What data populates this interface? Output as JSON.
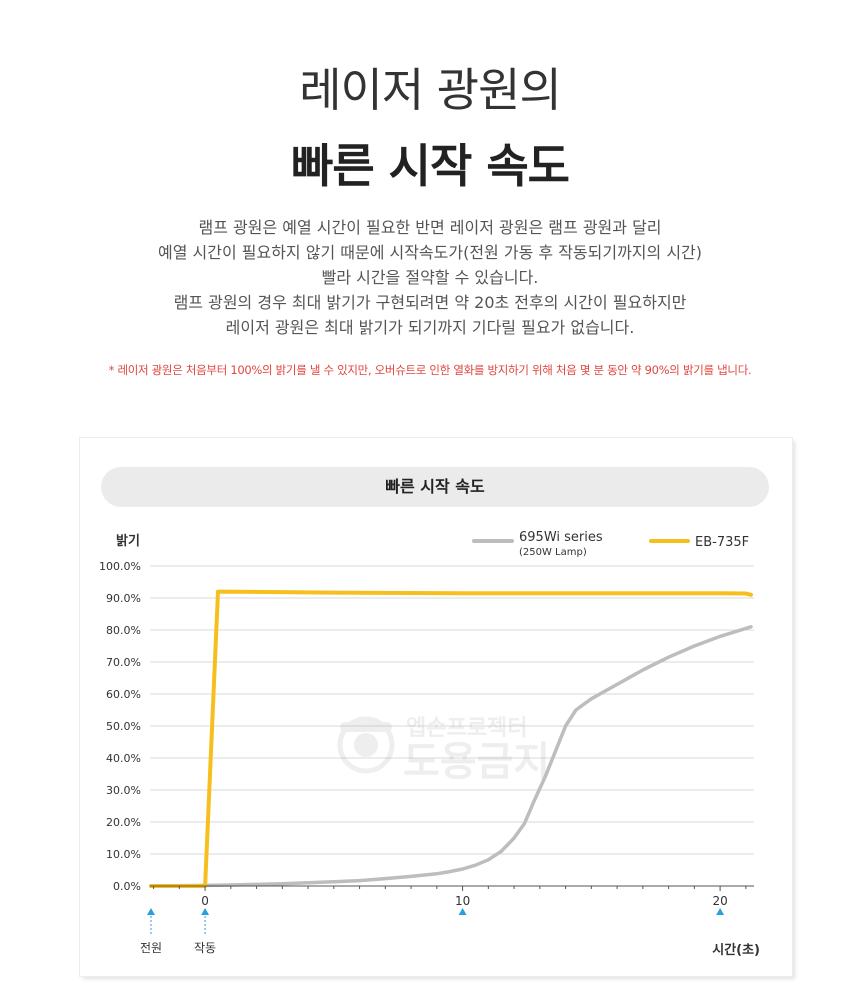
{
  "header": {
    "title_line1": "레이저 광원의",
    "title_line2": "빠른 시작 속도",
    "description": [
      "램프 광원은 예열 시간이 필요한 반면 레이저 광원은 램프 광원과 달리",
      "예열 시간이 필요하지 않기 때문에 시작속도가(전원 가동 후 작동되기까지의 시간)",
      "빨라 시간을 절약할 수 있습니다.",
      "램프 광원의 경우 최대 밝기가 구현되려면 약 20초 전후의 시간이 필요하지만",
      "레이저 광원은 최대 밝기가 되기까지 기다릴 필요가 없습니다."
    ],
    "note": "* 레이저 광원은 처음부터 100%의 밝기를 낼 수 있지만, 오버슈트로 인한 열화를 방지하기 위해 처음 몇 분 동안 약 90%의 밝기를 냅니다."
  },
  "watermark": {
    "line1": "엡손프로젝터",
    "line2": "도용금지"
  },
  "colors": {
    "lamp": "#bdbdbd",
    "laser": "#f7bf1e",
    "marker": "#2a9fe0",
    "grid": "#d9d9d9"
  },
  "chart_data": {
    "type": "line",
    "title": "빠른 시작 속도",
    "ylabel": "밝기",
    "xlabel": "시간(초)",
    "ylim": [
      0,
      100
    ],
    "xlim": [
      -2.1,
      21.2
    ],
    "yticks": [
      "0.0%",
      "10.0%",
      "20.0%",
      "30.0%",
      "40.0%",
      "50.0%",
      "60.0%",
      "70.0%",
      "80.0%",
      "90.0%",
      "100.0%"
    ],
    "xticks": [
      {
        "value": 0,
        "label": "0"
      },
      {
        "value": 10,
        "label": "10"
      },
      {
        "value": 20,
        "label": "20"
      }
    ],
    "legend_position": "top-right",
    "markers": [
      {
        "value": -2.1,
        "label": "전원"
      },
      {
        "value": 0,
        "label": "작동"
      },
      {
        "value": 10,
        "label": ""
      },
      {
        "value": 20,
        "label": ""
      }
    ],
    "series": [
      {
        "name": "695Wi series",
        "subname": "(250W Lamp)",
        "color": "#bdbdbd",
        "points": [
          [
            -2.1,
            0
          ],
          [
            0,
            0.2
          ],
          [
            1,
            0.3
          ],
          [
            2,
            0.5
          ],
          [
            3,
            0.7
          ],
          [
            4,
            1.0
          ],
          [
            5,
            1.3
          ],
          [
            6,
            1.7
          ],
          [
            7,
            2.3
          ],
          [
            8,
            3.0
          ],
          [
            9,
            3.8
          ],
          [
            9.5,
            4.5
          ],
          [
            10,
            5.3
          ],
          [
            10.5,
            6.5
          ],
          [
            11,
            8.2
          ],
          [
            11.5,
            10.8
          ],
          [
            12,
            15.0
          ],
          [
            12.4,
            19.5
          ],
          [
            12.8,
            27
          ],
          [
            13.2,
            34
          ],
          [
            13.6,
            42
          ],
          [
            14,
            50
          ],
          [
            14.4,
            55
          ],
          [
            15,
            58.5
          ],
          [
            16,
            63
          ],
          [
            17,
            67.5
          ],
          [
            18,
            71.5
          ],
          [
            19,
            75
          ],
          [
            20,
            78
          ],
          [
            21,
            80.5
          ],
          [
            21.2,
            81
          ]
        ]
      },
      {
        "name": "EB-735F",
        "subname": "",
        "color": "#f7bf1e",
        "points": [
          [
            -2.1,
            0
          ],
          [
            0,
            0
          ],
          [
            0.5,
            92
          ],
          [
            5,
            91.7
          ],
          [
            10,
            91.5
          ],
          [
            15,
            91.5
          ],
          [
            20,
            91.5
          ],
          [
            21,
            91.4
          ],
          [
            21.2,
            91
          ]
        ]
      }
    ]
  }
}
